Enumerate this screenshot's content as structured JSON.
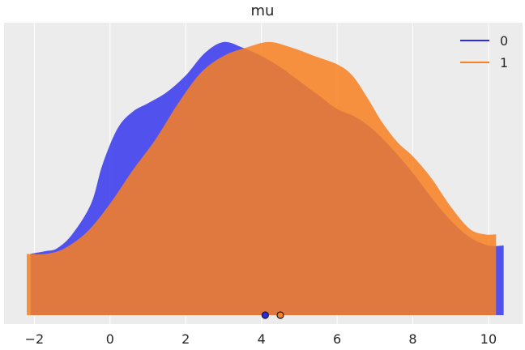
{
  "chart_data": {
    "type": "area",
    "title": "mu",
    "xlabel": "",
    "ylabel": "",
    "xlim": [
      -2.8,
      10.9
    ],
    "ylim": [
      0,
      1
    ],
    "xticks": [
      -2,
      0,
      2,
      4,
      6,
      8,
      10
    ],
    "xtick_labels": [
      "−2",
      "0",
      "2",
      "4",
      "6",
      "8",
      "10"
    ],
    "grid": "vertical",
    "legend_position": "top-right",
    "background": "#ececec",
    "series": [
      {
        "name": "0",
        "color": "#2a2aee",
        "alpha": 0.8,
        "points": [
          [
            -2.1,
            0.22
          ],
          [
            -1.7,
            0.23
          ],
          [
            -1.4,
            0.24
          ],
          [
            -1.0,
            0.29
          ],
          [
            -0.5,
            0.4
          ],
          [
            -0.2,
            0.54
          ],
          [
            0.2,
            0.67
          ],
          [
            0.6,
            0.73
          ],
          [
            1.0,
            0.76
          ],
          [
            1.5,
            0.8
          ],
          [
            2.0,
            0.86
          ],
          [
            2.5,
            0.94
          ],
          [
            3.0,
            0.98
          ],
          [
            3.5,
            0.96
          ],
          [
            4.0,
            0.93
          ],
          [
            4.5,
            0.89
          ],
          [
            5.0,
            0.84
          ],
          [
            5.5,
            0.79
          ],
          [
            6.0,
            0.74
          ],
          [
            6.5,
            0.71
          ],
          [
            7.0,
            0.66
          ],
          [
            7.5,
            0.59
          ],
          [
            8.0,
            0.51
          ],
          [
            8.5,
            0.42
          ],
          [
            9.0,
            0.34
          ],
          [
            9.5,
            0.28
          ],
          [
            10.0,
            0.25
          ],
          [
            10.4,
            0.25
          ]
        ],
        "marker_x": 4.1
      },
      {
        "name": "1",
        "color": "#f88020",
        "alpha": 0.85,
        "points": [
          [
            -2.2,
            0.22
          ],
          [
            -1.7,
            0.22
          ],
          [
            -1.2,
            0.24
          ],
          [
            -0.6,
            0.3
          ],
          [
            0.0,
            0.4
          ],
          [
            0.6,
            0.52
          ],
          [
            1.2,
            0.63
          ],
          [
            1.8,
            0.76
          ],
          [
            2.4,
            0.87
          ],
          [
            3.0,
            0.93
          ],
          [
            3.6,
            0.96
          ],
          [
            4.2,
            0.98
          ],
          [
            4.8,
            0.96
          ],
          [
            5.4,
            0.93
          ],
          [
            6.0,
            0.9
          ],
          [
            6.4,
            0.86
          ],
          [
            6.8,
            0.78
          ],
          [
            7.2,
            0.69
          ],
          [
            7.6,
            0.62
          ],
          [
            8.0,
            0.57
          ],
          [
            8.5,
            0.49
          ],
          [
            9.0,
            0.39
          ],
          [
            9.5,
            0.31
          ],
          [
            9.9,
            0.29
          ],
          [
            10.2,
            0.29
          ]
        ],
        "marker_x": 4.5
      }
    ]
  }
}
